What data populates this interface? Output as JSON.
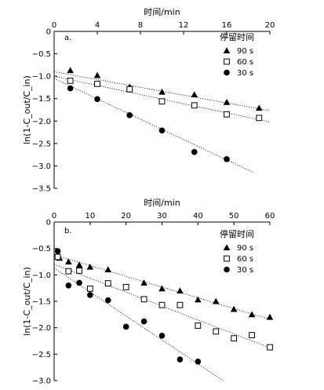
{
  "chart_data": [
    {
      "type": "scatter",
      "panel_label": "a.",
      "xlabel": "时间/min",
      "ylabel": "ln(1-C_out/C_in)",
      "xlim": [
        0,
        20
      ],
      "ylim": [
        -3.5,
        0
      ],
      "xticks": [
        "0",
        "4",
        "8",
        "12",
        "16",
        "20"
      ],
      "yticks": [
        "0",
        "−0.5",
        "−1.0",
        "−1.5",
        "−2.0",
        "−2.5",
        "−3.0",
        "−3.5"
      ],
      "legend_title": "停留时间",
      "legend_position": "top-right",
      "series": [
        {
          "name": "90 s",
          "marker": "triangle",
          "x": [
            1.5,
            4,
            7,
            10,
            13,
            16,
            19
          ],
          "y": [
            -0.87,
            -0.98,
            -1.24,
            -1.35,
            -1.41,
            -1.58,
            -1.71
          ],
          "trend": [
            [
              0,
              -0.9
            ],
            [
              20,
              -1.77
            ]
          ]
        },
        {
          "name": "60 s",
          "marker": "square",
          "x": [
            1.5,
            4,
            7,
            10,
            13,
            16,
            19
          ],
          "y": [
            -1.1,
            -1.17,
            -1.29,
            -1.56,
            -1.65,
            -1.85,
            -1.93
          ],
          "trend": [
            [
              0,
              -1.0
            ],
            [
              20,
              -2.02
            ]
          ]
        },
        {
          "name": "30 s",
          "marker": "circle",
          "x": [
            1.5,
            4,
            7,
            10,
            13,
            16
          ],
          "y": [
            -1.27,
            -1.51,
            -1.87,
            -2.21,
            -2.69,
            -2.85
          ],
          "trend": [
            [
              0,
              -1.05
            ],
            [
              18.5,
              -3.15
            ]
          ]
        }
      ]
    },
    {
      "type": "scatter",
      "panel_label": "b.",
      "xlabel": "时间/min",
      "ylabel": "ln(1-C_out/C_in)",
      "xlim": [
        0,
        60
      ],
      "ylim": [
        -3.0,
        0
      ],
      "xticks": [
        "0",
        "10",
        "20",
        "30",
        "40",
        "50",
        "60"
      ],
      "yticks": [
        "0",
        "−0.5",
        "−1.0",
        "−1.5",
        "−2.0",
        "−2.5",
        "−3.0"
      ],
      "legend_title": "停留时间",
      "legend_position": "top-right",
      "series": [
        {
          "name": "90 s",
          "marker": "triangle",
          "x": [
            1.5,
            4,
            7,
            10,
            15,
            25,
            30,
            35,
            40,
            45,
            50,
            55,
            60
          ],
          "y": [
            -0.68,
            -0.75,
            -0.81,
            -0.85,
            -0.9,
            -1.15,
            -1.26,
            -1.3,
            -1.47,
            -1.5,
            -1.65,
            -1.75,
            -1.8
          ],
          "trend": [
            [
              0,
              -0.62
            ],
            [
              60,
              -1.84
            ]
          ]
        },
        {
          "name": "60 s",
          "marker": "square",
          "x": [
            1,
            4,
            7,
            10,
            15,
            20,
            25,
            30,
            35,
            40,
            45,
            50,
            55,
            60
          ],
          "y": [
            -0.66,
            -0.93,
            -0.92,
            -1.26,
            -1.16,
            -1.23,
            -1.46,
            -1.57,
            -1.57,
            -1.96,
            -2.07,
            -2.2,
            -2.14,
            -2.37
          ],
          "trend": [
            [
              0,
              -0.8
            ],
            [
              60,
              -2.38
            ]
          ]
        },
        {
          "name": "30 s",
          "marker": "circle",
          "x": [
            1,
            4,
            7,
            10,
            15,
            20,
            25,
            30,
            35,
            40
          ],
          "y": [
            -0.55,
            -1.2,
            -1.15,
            -1.38,
            -1.48,
            -1.98,
            -1.88,
            -2.15,
            -2.6,
            -2.64
          ],
          "trend": [
            [
              0,
              -0.87
            ],
            [
              47,
              -3.0
            ]
          ]
        }
      ]
    }
  ]
}
